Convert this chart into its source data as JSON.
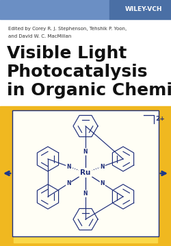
{
  "bg_color": "#ffffff",
  "top_bar_color1": "#4a6fa5",
  "top_bar_color2": "#6b8fc4",
  "wiley_vch_text": "WILEY-VCH",
  "wiley_vch_color": "#ffffff",
  "editor_line1": "Edited by Corey R. J. Stephenson, Tehshik P. Yoon,",
  "editor_line2": "and David W. C. MacMillan",
  "editor_color": "#333333",
  "title_line1": "Visible Light",
  "title_line2": "Photocatalysis",
  "title_line3": "in Organic Chemistry",
  "title_color": "#111111",
  "yellow_outer": "#f0b820",
  "yellow_inner": "#fad84a",
  "white_box_bg": "#fffef5",
  "molecule_color": "#1e2d7a",
  "arrow_color": "#1e3a8a",
  "charge_text": "2+",
  "ru_text": "Ru",
  "fig_width": 2.5,
  "fig_height": 3.59,
  "dpi": 100
}
